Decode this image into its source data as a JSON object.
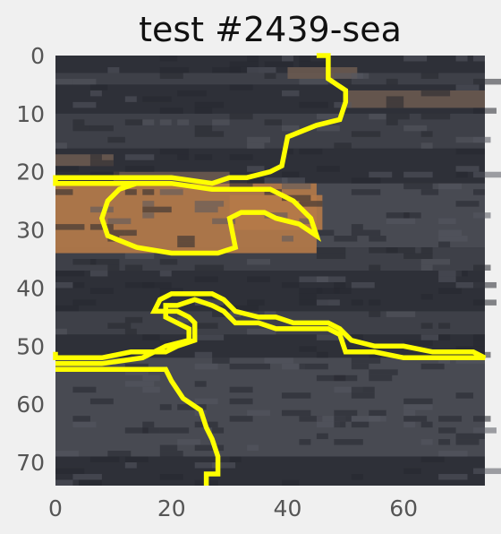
{
  "chart_data": {
    "type": "heatmap",
    "title": "test #2439-sea",
    "xlabel": "",
    "ylabel": "",
    "xlim": [
      0,
      74
    ],
    "ylim": [
      74,
      0
    ],
    "y_axis_inverted": true,
    "grid": false,
    "x_ticks": [
      0,
      20,
      40,
      60
    ],
    "y_ticks": [
      0,
      10,
      20,
      30,
      40,
      50,
      60,
      70
    ],
    "x_tick_labels": [
      "0",
      "20",
      "40",
      "60"
    ],
    "y_tick_labels": [
      "0",
      "10",
      "20",
      "30",
      "40",
      "50",
      "60",
      "70"
    ],
    "colors": {
      "background": "#f0f0f0",
      "dark": "#2e3038",
      "mid": "#3e4048",
      "grey": "#484a52",
      "orange": "#b57a48",
      "brown": "#6a5a50",
      "contour": "#ffff00"
    },
    "bands": [
      {
        "y": [
          0,
          3
        ],
        "color": "dark"
      },
      {
        "y": [
          3,
          5
        ],
        "color": "mid"
      },
      {
        "y": [
          5,
          10
        ],
        "color": "dark"
      },
      {
        "y": [
          10,
          16
        ],
        "color": "mid"
      },
      {
        "y": [
          16,
          22
        ],
        "color": "dark"
      },
      {
        "y": [
          22,
          33
        ],
        "color": "grey"
      },
      {
        "y": [
          33,
          37
        ],
        "color": "mid"
      },
      {
        "y": [
          37,
          44
        ],
        "color": "dark"
      },
      {
        "y": [
          44,
          48
        ],
        "color": "mid"
      },
      {
        "y": [
          48,
          52
        ],
        "color": "dark"
      },
      {
        "y": [
          52,
          69
        ],
        "color": "grey"
      },
      {
        "y": [
          69,
          74
        ],
        "color": "dark"
      }
    ],
    "patches": [
      {
        "x": [
          0,
          45
        ],
        "y": [
          22,
          34
        ],
        "color": "orange"
      },
      {
        "x": [
          10,
          30
        ],
        "y": [
          20,
          22
        ],
        "color": "brown"
      },
      {
        "x": [
          30,
          46
        ],
        "y": [
          24,
          30
        ],
        "color": "orange"
      },
      {
        "x": [
          40,
          52
        ],
        "y": [
          2,
          4
        ],
        "color": "brown"
      },
      {
        "x": [
          50,
          74
        ],
        "y": [
          6,
          9
        ],
        "color": "brown"
      },
      {
        "x": [
          0,
          10
        ],
        "y": [
          17,
          19
        ],
        "color": "brown"
      }
    ],
    "contours": [
      {
        "name": "upper",
        "points": [
          [
            45,
            0
          ],
          [
            47,
            0
          ],
          [
            47,
            4
          ],
          [
            50,
            6
          ],
          [
            50,
            8
          ],
          [
            49,
            11
          ],
          [
            45,
            12
          ],
          [
            40,
            14
          ],
          [
            39,
            19
          ],
          [
            37,
            20
          ],
          [
            33,
            21
          ],
          [
            30,
            21
          ],
          [
            27,
            22
          ],
          [
            20,
            21
          ],
          [
            14,
            21
          ],
          [
            0,
            21
          ],
          [
            0,
            22
          ],
          [
            14,
            22
          ],
          [
            20,
            22
          ],
          [
            27,
            23
          ],
          [
            31,
            23
          ],
          [
            37,
            23
          ],
          [
            41,
            25
          ],
          [
            44,
            28
          ],
          [
            45,
            31
          ],
          [
            42,
            29
          ],
          [
            38,
            28
          ],
          [
            36,
            27
          ],
          [
            34,
            27
          ],
          [
            32,
            27
          ],
          [
            30,
            28
          ],
          [
            31,
            33
          ],
          [
            28,
            34
          ],
          [
            20,
            34
          ],
          [
            14,
            33
          ],
          [
            9,
            31
          ],
          [
            8,
            28
          ],
          [
            9,
            25
          ],
          [
            11,
            23
          ],
          [
            14,
            22
          ]
        ]
      },
      {
        "name": "middle",
        "points": [
          [
            0,
            51
          ],
          [
            0,
            52
          ],
          [
            4,
            52
          ],
          [
            8,
            52
          ],
          [
            13,
            51
          ],
          [
            19,
            51
          ],
          [
            21,
            50
          ],
          [
            24,
            49
          ],
          [
            24,
            46
          ],
          [
            23,
            45
          ],
          [
            21,
            44
          ],
          [
            18,
            44
          ],
          [
            17,
            44
          ],
          [
            18,
            42
          ],
          [
            20,
            41
          ],
          [
            21,
            41
          ],
          [
            25,
            41
          ],
          [
            27,
            41
          ],
          [
            29,
            42
          ],
          [
            31,
            44
          ],
          [
            35,
            45
          ],
          [
            38,
            45
          ],
          [
            41,
            46
          ],
          [
            47,
            46
          ],
          [
            49,
            47
          ],
          [
            51,
            49
          ],
          [
            55,
            50
          ],
          [
            60,
            50
          ],
          [
            65,
            51
          ],
          [
            72,
            51
          ],
          [
            74,
            52
          ],
          [
            72,
            52
          ],
          [
            65,
            52
          ],
          [
            60,
            52
          ],
          [
            55,
            51
          ],
          [
            50,
            51
          ],
          [
            49,
            48
          ],
          [
            47,
            47
          ],
          [
            41,
            47
          ],
          [
            38,
            47
          ],
          [
            35,
            46
          ],
          [
            31,
            46
          ],
          [
            29,
            44
          ],
          [
            27,
            43
          ],
          [
            24,
            42
          ],
          [
            21,
            43
          ],
          [
            19,
            43
          ],
          [
            19,
            45
          ],
          [
            23,
            47
          ],
          [
            23,
            49
          ],
          [
            19,
            50
          ],
          [
            15,
            52
          ],
          [
            8,
            53
          ],
          [
            4,
            53
          ],
          [
            0,
            53
          ]
        ]
      },
      {
        "name": "lower",
        "points": [
          [
            0,
            54
          ],
          [
            4,
            54
          ],
          [
            10,
            54
          ],
          [
            19,
            54
          ],
          [
            20,
            56
          ],
          [
            22,
            59
          ],
          [
            25,
            61
          ],
          [
            26,
            64
          ],
          [
            27,
            66
          ],
          [
            28,
            69
          ],
          [
            28,
            72
          ],
          [
            26,
            72
          ],
          [
            26,
            74
          ]
        ]
      }
    ]
  }
}
